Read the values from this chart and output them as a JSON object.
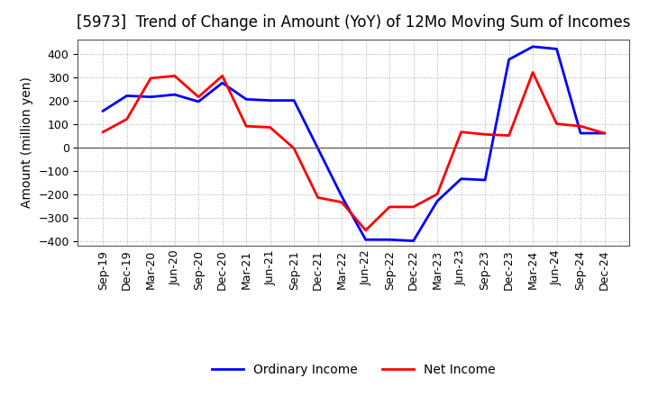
{
  "title": "[5973]  Trend of Change in Amount (YoY) of 12Mo Moving Sum of Incomes",
  "ylabel": "Amount (million yen)",
  "x_labels": [
    "Sep-19",
    "Dec-19",
    "Mar-20",
    "Jun-20",
    "Sep-20",
    "Dec-20",
    "Mar-21",
    "Jun-21",
    "Sep-21",
    "Dec-21",
    "Mar-22",
    "Jun-22",
    "Sep-22",
    "Dec-22",
    "Mar-23",
    "Jun-23",
    "Sep-23",
    "Dec-23",
    "Mar-24",
    "Jun-24",
    "Sep-24",
    "Dec-24"
  ],
  "ordinary_income": [
    155,
    220,
    215,
    225,
    195,
    275,
    205,
    200,
    200,
    -5,
    -210,
    -395,
    -395,
    -400,
    -230,
    -135,
    -140,
    375,
    430,
    420,
    60,
    60
  ],
  "net_income": [
    65,
    120,
    295,
    305,
    215,
    305,
    90,
    85,
    -5,
    -215,
    -235,
    -355,
    -255,
    -255,
    -200,
    65,
    55,
    50,
    320,
    100,
    90,
    60
  ],
  "ordinary_income_color": "#0000ff",
  "net_income_color": "#ff0000",
  "ylim": [
    -420,
    460
  ],
  "yticks": [
    -400,
    -300,
    -200,
    -100,
    0,
    100,
    200,
    300,
    400
  ],
  "grid_color": "#aaaaaa",
  "background_color": "#ffffff",
  "legend_labels": [
    "Ordinary Income",
    "Net Income"
  ],
  "title_fontsize": 12,
  "label_fontsize": 10,
  "tick_fontsize": 9,
  "line_width": 2.0
}
